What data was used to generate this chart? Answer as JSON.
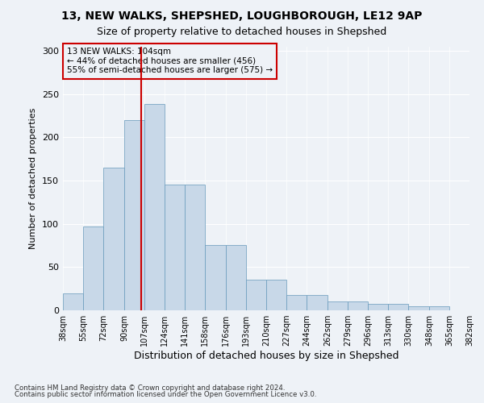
{
  "title_line1": "13, NEW WALKS, SHEPSHED, LOUGHBOROUGH, LE12 9AP",
  "title_line2": "Size of property relative to detached houses in Shepshed",
  "xlabel": "Distribution of detached houses by size in Shepshed",
  "ylabel": "Number of detached properties",
  "footnote1": "Contains HM Land Registry data © Crown copyright and database right 2024.",
  "footnote2": "Contains public sector information licensed under the Open Government Licence v3.0.",
  "annotation_line1": "13 NEW WALKS: 104sqm",
  "annotation_line2": "← 44% of detached houses are smaller (456)",
  "annotation_line3": "55% of semi-detached houses are larger (575) →",
  "property_size": 104,
  "bar_color": "#c8d8e8",
  "bar_edge_color": "#6699bb",
  "vline_color": "#cc0000",
  "annotation_box_edge": "#cc0000",
  "background_color": "#eef2f7",
  "bin_edges": [
    38,
    55,
    72,
    90,
    107,
    124,
    141,
    158,
    176,
    193,
    210,
    227,
    244,
    262,
    279,
    296,
    313,
    330,
    348,
    365,
    382
  ],
  "tick_labels": [
    "38sqm",
    "55sqm",
    "72sqm",
    "90sqm",
    "107sqm",
    "124sqm",
    "141sqm",
    "158sqm",
    "176sqm",
    "193sqm",
    "210sqm",
    "227sqm",
    "244sqm",
    "262sqm",
    "279sqm",
    "296sqm",
    "313sqm",
    "330sqm",
    "348sqm",
    "365sqm",
    "382sqm"
  ],
  "values": [
    20,
    97,
    165,
    220,
    238,
    145,
    145,
    75,
    75,
    35,
    35,
    18,
    18,
    10,
    10,
    7,
    7,
    5,
    5,
    0
  ],
  "ylim": [
    0,
    305
  ],
  "yticks": [
    0,
    50,
    100,
    150,
    200,
    250,
    300
  ]
}
